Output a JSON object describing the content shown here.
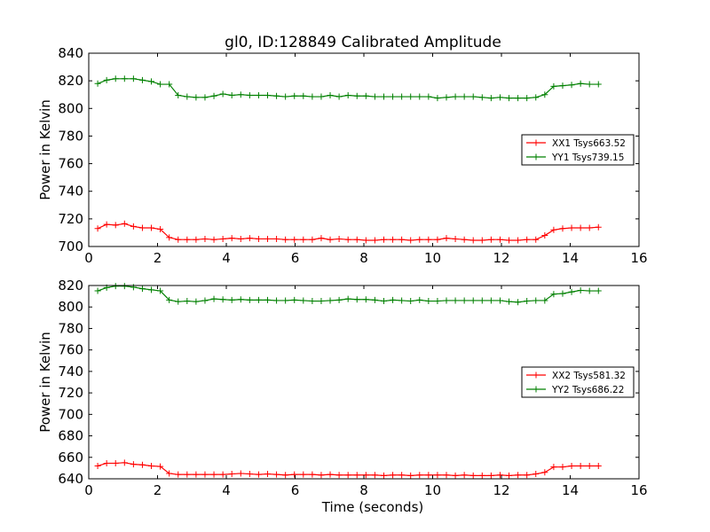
{
  "figure": {
    "title": "gl0, ID:128849 Calibrated Amplitude"
  },
  "chart_data": [
    {
      "type": "line",
      "title": "gl0, ID:128849 Calibrated Amplitude",
      "xlabel": "",
      "ylabel": "Power in Kelvin",
      "xlim": [
        0,
        16
      ],
      "ylim": [
        700,
        840
      ],
      "xticks": [
        0,
        2,
        4,
        6,
        8,
        10,
        12,
        14,
        16
      ],
      "yticks": [
        700,
        720,
        740,
        760,
        780,
        800,
        820,
        840
      ],
      "legend_position": "right",
      "grid": false,
      "x": [
        0.26,
        0.52,
        0.78,
        1.04,
        1.3,
        1.56,
        1.82,
        2.08,
        2.34,
        2.6,
        2.86,
        3.12,
        3.38,
        3.64,
        3.9,
        4.16,
        4.42,
        4.68,
        4.94,
        5.2,
        5.46,
        5.72,
        5.98,
        6.24,
        6.5,
        6.76,
        7.02,
        7.28,
        7.54,
        7.8,
        8.06,
        8.32,
        8.58,
        8.84,
        9.1,
        9.36,
        9.62,
        9.88,
        10.14,
        10.4,
        10.66,
        10.92,
        11.18,
        11.44,
        11.7,
        11.96,
        12.22,
        12.48,
        12.74,
        13.0,
        13.26,
        13.52,
        13.78,
        14.04,
        14.3,
        14.56,
        14.82
      ],
      "series": [
        {
          "name": "XX1 Tsys663.52",
          "color": "#ff0000",
          "values": [
            713,
            716,
            715.5,
            716.5,
            714.5,
            713.5,
            713.5,
            712.5,
            706.5,
            705,
            705,
            705,
            705.5,
            705,
            705.5,
            706,
            705.5,
            706,
            705.5,
            705.5,
            705.5,
            705,
            705,
            705,
            705,
            706,
            705,
            705.5,
            705,
            705,
            704.5,
            704.5,
            705,
            705,
            705,
            704.5,
            705,
            705,
            705,
            706,
            705.5,
            705,
            704.5,
            704.5,
            705,
            705,
            704.5,
            704.5,
            705,
            705,
            708,
            712,
            713,
            713.5,
            713.5,
            713.5,
            714
          ]
        },
        {
          "name": "YY1 Tsys739.15",
          "color": "#008000",
          "values": [
            818,
            820.5,
            821.5,
            821.5,
            821.5,
            820.5,
            819.5,
            817.5,
            817.5,
            809.5,
            808.5,
            808,
            808,
            809,
            810.5,
            809.5,
            810,
            809.5,
            809.5,
            809.5,
            809,
            808.5,
            809,
            809,
            808.5,
            808.5,
            809.5,
            808.5,
            809.5,
            809,
            809,
            808.5,
            808.5,
            808.5,
            808.5,
            808.5,
            808.5,
            808.5,
            807.5,
            808,
            808.5,
            808.5,
            808.5,
            808,
            807.5,
            808,
            807.5,
            807.5,
            807.5,
            808,
            810,
            816,
            816.5,
            817,
            818,
            817.5,
            817.5
          ]
        }
      ]
    },
    {
      "type": "line",
      "title": "",
      "xlabel": "Time (seconds)",
      "ylabel": "Power in Kelvin",
      "xlim": [
        0,
        16
      ],
      "ylim": [
        640,
        820
      ],
      "xticks": [
        0,
        2,
        4,
        6,
        8,
        10,
        12,
        14,
        16
      ],
      "yticks": [
        640,
        660,
        680,
        700,
        720,
        740,
        760,
        780,
        800,
        820
      ],
      "legend_position": "right",
      "grid": false,
      "x": [
        0.26,
        0.52,
        0.78,
        1.04,
        1.3,
        1.56,
        1.82,
        2.08,
        2.34,
        2.6,
        2.86,
        3.12,
        3.38,
        3.64,
        3.9,
        4.16,
        4.42,
        4.68,
        4.94,
        5.2,
        5.46,
        5.72,
        5.98,
        6.24,
        6.5,
        6.76,
        7.02,
        7.28,
        7.54,
        7.8,
        8.06,
        8.32,
        8.58,
        8.84,
        9.1,
        9.36,
        9.62,
        9.88,
        10.14,
        10.4,
        10.66,
        10.92,
        11.18,
        11.44,
        11.7,
        11.96,
        12.22,
        12.48,
        12.74,
        13.0,
        13.26,
        13.52,
        13.78,
        14.04,
        14.3,
        14.56,
        14.82
      ],
      "series": [
        {
          "name": "XX2 Tsys581.32",
          "color": "#ff0000",
          "values": [
            652,
            654.5,
            654.5,
            655,
            653.5,
            653,
            652,
            651.5,
            645,
            644,
            644,
            644,
            644,
            644,
            644,
            644.5,
            645,
            644.5,
            644,
            644.5,
            644,
            643.5,
            644,
            644,
            644,
            643.5,
            644,
            643.5,
            643.5,
            643.5,
            643.5,
            643.5,
            643,
            643.5,
            643.5,
            643,
            643.5,
            643.5,
            643.5,
            643.5,
            643,
            643.5,
            643,
            643,
            643,
            643.5,
            643,
            643.5,
            643.5,
            644.5,
            646,
            651,
            651,
            652,
            652,
            652,
            652
          ]
        },
        {
          "name": "YY2 Tsys686.22",
          "color": "#008000",
          "values": [
            815,
            818,
            819.5,
            819.5,
            818.5,
            817,
            816,
            815,
            806.5,
            805,
            805.5,
            805,
            806,
            807.5,
            807,
            806.5,
            807,
            806.5,
            806.5,
            806.5,
            806,
            806,
            806.5,
            806,
            805.5,
            805.5,
            806,
            806.5,
            807.5,
            807,
            807,
            806.5,
            805.5,
            806.5,
            806,
            805.5,
            806.5,
            805.5,
            805.5,
            806,
            806,
            806,
            806,
            806,
            806,
            806,
            805,
            804.5,
            805.5,
            806,
            806,
            812,
            812.5,
            814,
            815.5,
            815,
            815
          ]
        }
      ]
    }
  ]
}
